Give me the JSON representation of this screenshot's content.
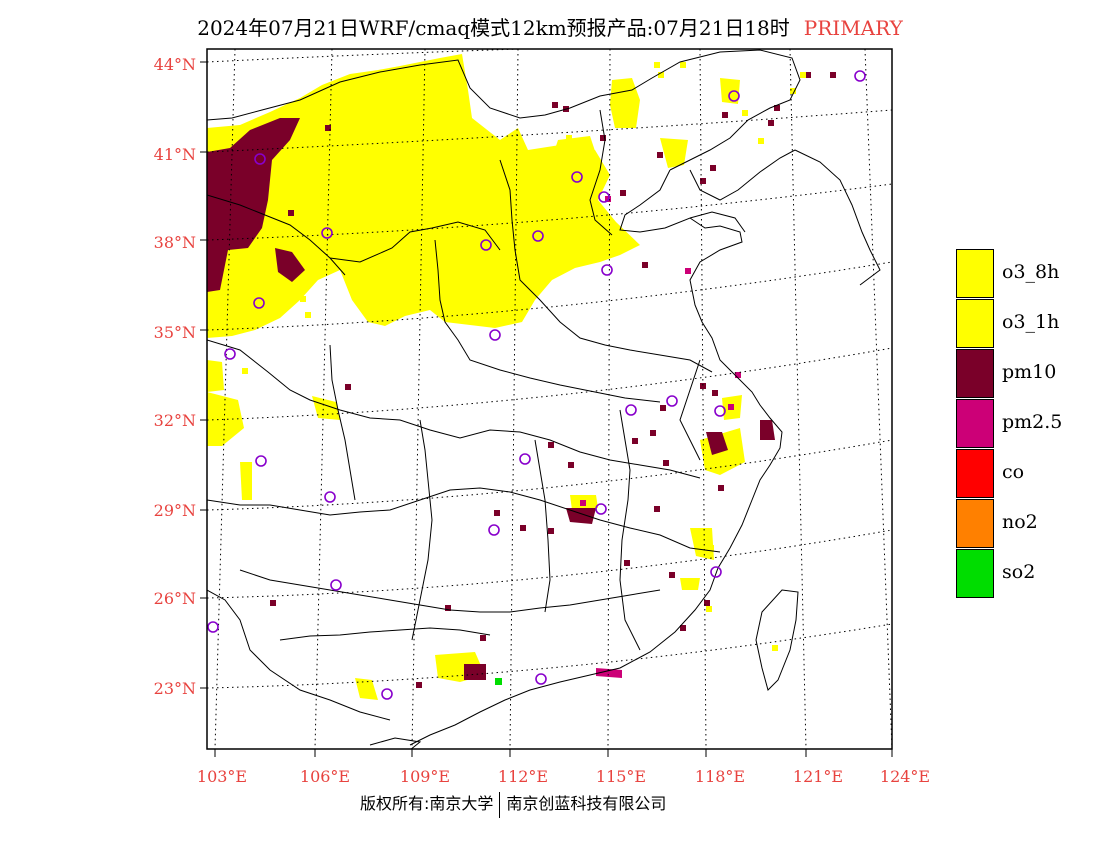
{
  "title": {
    "main": "2024年07月21日WRF/cmaq模式12km预报产品:07月21日18时",
    "tag": "PRIMARY"
  },
  "axes": {
    "lat_labels": [
      "44°N",
      "41°N",
      "38°N",
      "35°N",
      "32°N",
      "29°N",
      "26°N",
      "23°N"
    ],
    "lon_labels": [
      "103°E",
      "106°E",
      "109°E",
      "112°E",
      "115°E",
      "118°E",
      "121°E",
      "124°E"
    ],
    "label_color": "#e8433f"
  },
  "legend": [
    {
      "label": "o3_8h",
      "color": "#ffff00"
    },
    {
      "label": "o3_1h",
      "color": "#ffff00"
    },
    {
      "label": "pm10",
      "color": "#7a0029"
    },
    {
      "label": "pm2.5",
      "color": "#cc0077"
    },
    {
      "label": "co",
      "color": "#ff0000"
    },
    {
      "label": "no2",
      "color": "#ff8000"
    },
    {
      "label": "so2",
      "color": "#00dd00"
    }
  ],
  "footer": {
    "left": "版权所有:南京大学",
    "right": "南京创蓝科技有限公司"
  },
  "map": {
    "marker_color": "#8800cc",
    "colors": {
      "o3": "#ffff00",
      "pm10": "#7a0029",
      "pm25": "#cc0077",
      "so2": "#00dd00"
    }
  }
}
